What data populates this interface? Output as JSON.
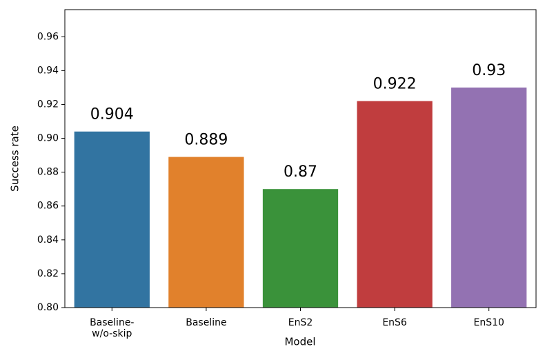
{
  "chart_data": {
    "type": "bar",
    "x_label": "Model",
    "y_label": "Success rate",
    "categories": [
      "Baseline-\nw/o-skip",
      "Baseline",
      "EnS2",
      "EnS6",
      "EnS10"
    ],
    "values": [
      0.904,
      0.889,
      0.87,
      0.922,
      0.93
    ],
    "colors": [
      "#3274a1",
      "#e1812c",
      "#3a923a",
      "#c03d3e",
      "#9372b2"
    ],
    "ylim": [
      0.8,
      0.976
    ],
    "yticks": [
      {
        "value": 0.8,
        "label": "0.80"
      },
      0.82,
      0.84,
      0.86,
      0.88,
      {
        "value": 0.9,
        "label": "0.90"
      },
      0.92,
      0.94,
      0.96
    ],
    "grid": false
  }
}
